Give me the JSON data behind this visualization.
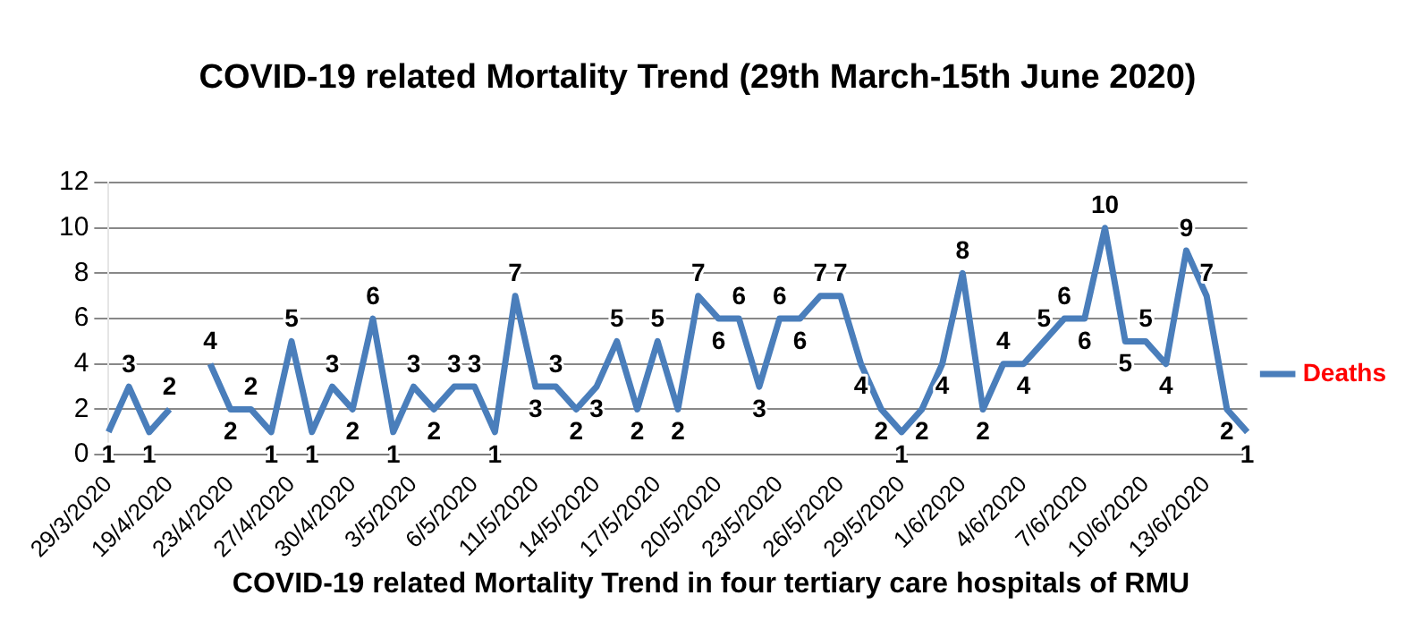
{
  "chart_data": {
    "type": "line",
    "title": "COVID-19 related Mortality Trend (29th March-15th June 2020)",
    "categories": [
      "29/3/2020",
      null,
      null,
      "19/4/2020",
      null,
      null,
      "23/4/2020",
      null,
      null,
      "27/4/2020",
      null,
      null,
      "30/4/2020",
      null,
      null,
      "3/5/2020",
      null,
      null,
      "6/5/2020",
      null,
      null,
      "11/5/2020",
      null,
      null,
      "14/5/2020",
      null,
      null,
      "17/5/2020",
      null,
      null,
      "20/5/2020",
      null,
      null,
      "23/5/2020",
      null,
      null,
      "26/5/2020",
      null,
      null,
      "29/5/2020",
      null,
      null,
      "1/6/2020",
      null,
      null,
      "4/6/2020",
      null,
      null,
      "7/6/2020",
      null,
      null,
      "10/6/2020",
      null,
      null,
      "13/6/2020",
      null,
      null
    ],
    "series": [
      {
        "name": "Deaths",
        "color": "#4a7ebb",
        "values": [
          1,
          3,
          1,
          2,
          null,
          4,
          2,
          2,
          1,
          5,
          1,
          3,
          2,
          6,
          1,
          3,
          2,
          3,
          3,
          1,
          7,
          3,
          3,
          2,
          3,
          5,
          2,
          5,
          2,
          7,
          6,
          6,
          3,
          6,
          6,
          7,
          7,
          4,
          2,
          1,
          2,
          4,
          8,
          2,
          4,
          4,
          5,
          6,
          6,
          10,
          5,
          5,
          4,
          9,
          7,
          2,
          1
        ]
      }
    ],
    "ylim": [
      0,
      12
    ],
    "yticks": [
      0,
      2,
      4,
      6,
      8,
      10,
      12
    ],
    "grid": "y",
    "legend": "right",
    "data_labels": true,
    "marker": "none",
    "annotations": [
      "COVID-19 related Mortality Trend in four tertiary care hospitals of RMU"
    ]
  }
}
